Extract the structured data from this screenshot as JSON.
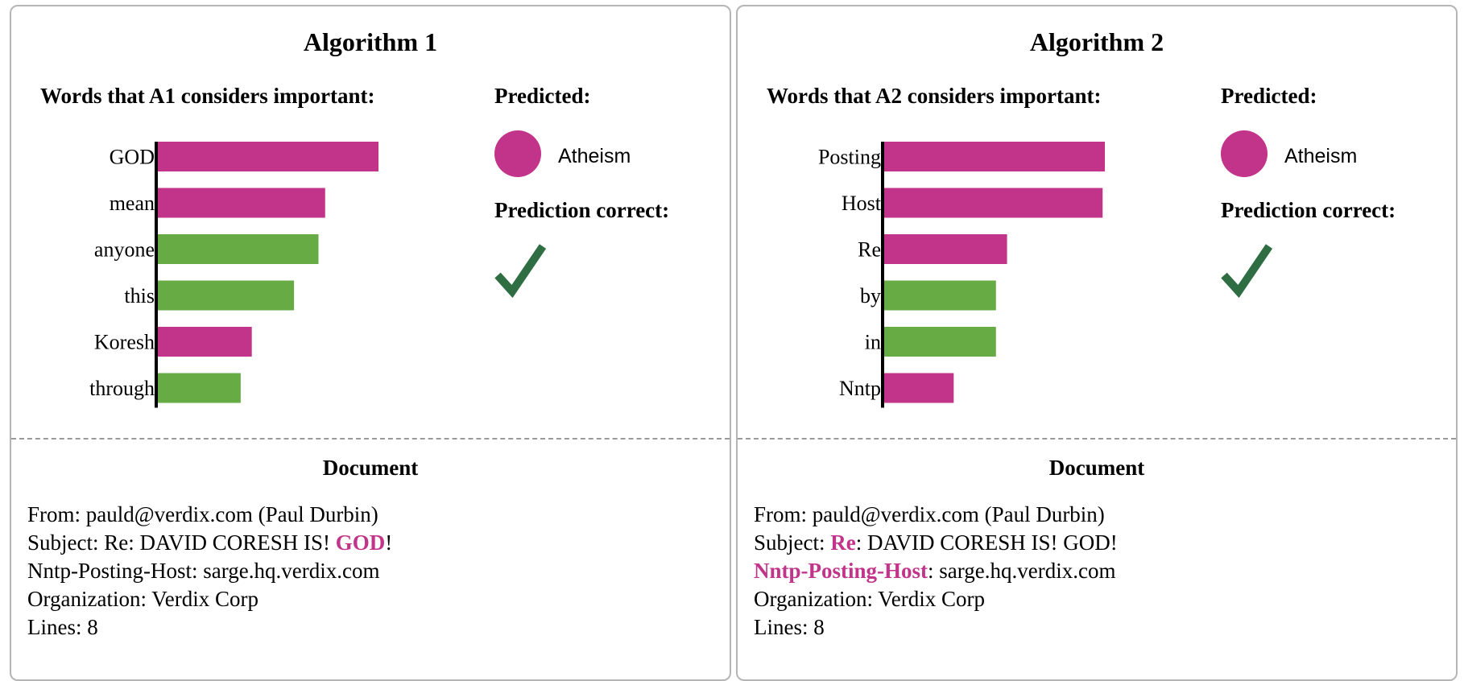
{
  "colors": {
    "supports": "#c2338a",
    "contradicts": "#66ab43",
    "check": "#2f6e43",
    "axis": "#000000"
  },
  "panels": [
    {
      "title": "Algorithm 1",
      "words_heading": "Words that A1 considers important:",
      "predicted_heading": "Predicted:",
      "predicted_class": "Atheism",
      "predicted_icon": "circle-icon",
      "correct_heading": "Prediction correct:",
      "correct_icon": "check-icon",
      "document_heading": "Document",
      "document_lines": [
        [
          {
            "t": "From: pauld@verdix.com (Paul Durbin)",
            "h": false
          }
        ],
        [
          {
            "t": "Subject: Re: DAVID CORESH IS! ",
            "h": false
          },
          {
            "t": "GOD",
            "h": true
          },
          {
            "t": "!",
            "h": false
          }
        ],
        [
          {
            "t": "Nntp-Posting-Host: sarge.hq.verdix.com",
            "h": false
          }
        ],
        [
          {
            "t": "Organization: Verdix Corp",
            "h": false
          }
        ],
        [
          {
            "t": "Lines: 8",
            "h": false
          }
        ]
      ]
    },
    {
      "title": "Algorithm 2",
      "words_heading": "Words that A2 considers important:",
      "predicted_heading": "Predicted:",
      "predicted_class": "Atheism",
      "predicted_icon": "circle-icon",
      "correct_heading": "Prediction correct:",
      "correct_icon": "check-icon",
      "document_heading": "Document",
      "document_lines": [
        [
          {
            "t": "From: pauld@verdix.com (Paul Durbin)",
            "h": false
          }
        ],
        [
          {
            "t": "Subject: ",
            "h": false
          },
          {
            "t": "Re",
            "h": true
          },
          {
            "t": ": DAVID CORESH IS! GOD!",
            "h": false
          }
        ],
        [
          {
            "t": "Nntp-Posting-Host",
            "h": true
          },
          {
            "t": ": sarge.hq.verdix.com",
            "h": false
          }
        ],
        [
          {
            "t": "Organization: Verdix Corp",
            "h": false
          }
        ],
        [
          {
            "t": "Lines: 8",
            "h": false
          }
        ]
      ]
    }
  ],
  "chart_data": [
    {
      "type": "bar",
      "orientation": "horizontal",
      "categories": [
        "GOD",
        "mean",
        "anyone",
        "this",
        "Koresh",
        "through"
      ],
      "values": [
        1.0,
        0.76,
        0.73,
        0.62,
        0.43,
        0.38
      ],
      "sign": [
        "supports",
        "supports",
        "contradicts",
        "contradicts",
        "supports",
        "contradicts"
      ],
      "xlim": [
        0,
        1
      ],
      "grid": false
    },
    {
      "type": "bar",
      "orientation": "horizontal",
      "categories": [
        "Posting",
        "Host",
        "Re",
        "by",
        "in",
        "Nntp"
      ],
      "values": [
        1.0,
        0.99,
        0.56,
        0.51,
        0.51,
        0.32
      ],
      "sign": [
        "supports",
        "supports",
        "supports",
        "contradicts",
        "contradicts",
        "supports"
      ],
      "xlim": [
        0,
        1
      ],
      "grid": false
    }
  ]
}
